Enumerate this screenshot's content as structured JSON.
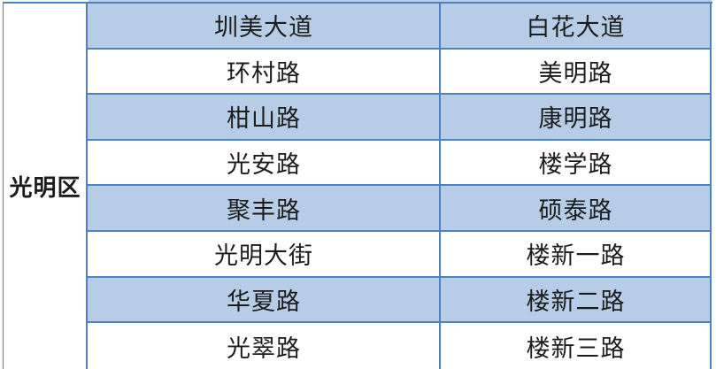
{
  "table": {
    "region": {
      "label": "光明区"
    },
    "rows": [
      {
        "left": "圳美大道",
        "right": "白花大道"
      },
      {
        "left": "环村路",
        "right": "美明路"
      },
      {
        "left": "柑山路",
        "right": "康明路"
      },
      {
        "left": "光安路",
        "right": "楼学路"
      },
      {
        "left": "聚丰路",
        "right": "硕泰路"
      },
      {
        "left": "光明大街",
        "right": "楼新一路"
      },
      {
        "left": "华夏路",
        "right": "楼新二路"
      },
      {
        "left": "光翠路",
        "right": "楼新三路"
      }
    ],
    "style": {
      "row_fill_blue": "#b7cce6",
      "row_fill_white": "#ffffff",
      "border_color": "#4f81bd",
      "text_color": "#1c1c1c"
    }
  }
}
